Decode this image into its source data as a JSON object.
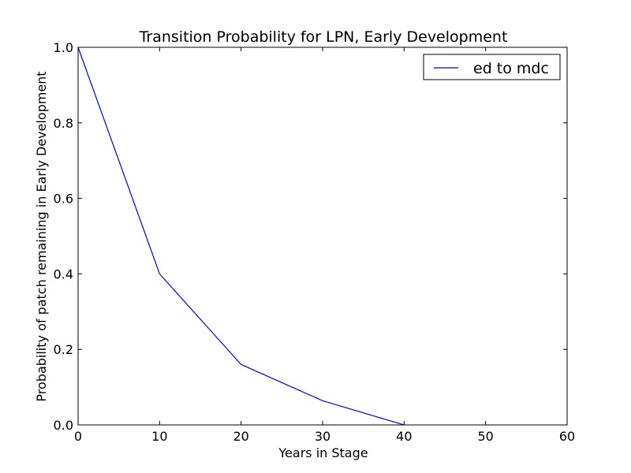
{
  "chart_data": {
    "type": "line",
    "title": "Transition Probability for LPN, Early Development",
    "xlabel": "Years in Stage",
    "ylabel": "Probability of patch remaining in Early Development",
    "xlim": [
      0,
      60
    ],
    "ylim": [
      0.0,
      1.0
    ],
    "xticks": [
      0,
      10,
      20,
      30,
      40,
      50,
      60
    ],
    "xtick_labels": [
      "0",
      "10",
      "20",
      "30",
      "40",
      "50",
      "60"
    ],
    "yticks": [
      0.0,
      0.2,
      0.4,
      0.6,
      0.8,
      1.0
    ],
    "ytick_labels": [
      "0.0",
      "0.2",
      "0.4",
      "0.6",
      "0.8",
      "1.0"
    ],
    "grid": false,
    "legend_position": "top-right",
    "series": [
      {
        "name": "ed to mdc",
        "color": "#0000ff",
        "x": [
          0,
          10,
          20,
          30,
          40
        ],
        "y": [
          1.0,
          0.4,
          0.16,
          0.064,
          0.0
        ]
      }
    ]
  }
}
